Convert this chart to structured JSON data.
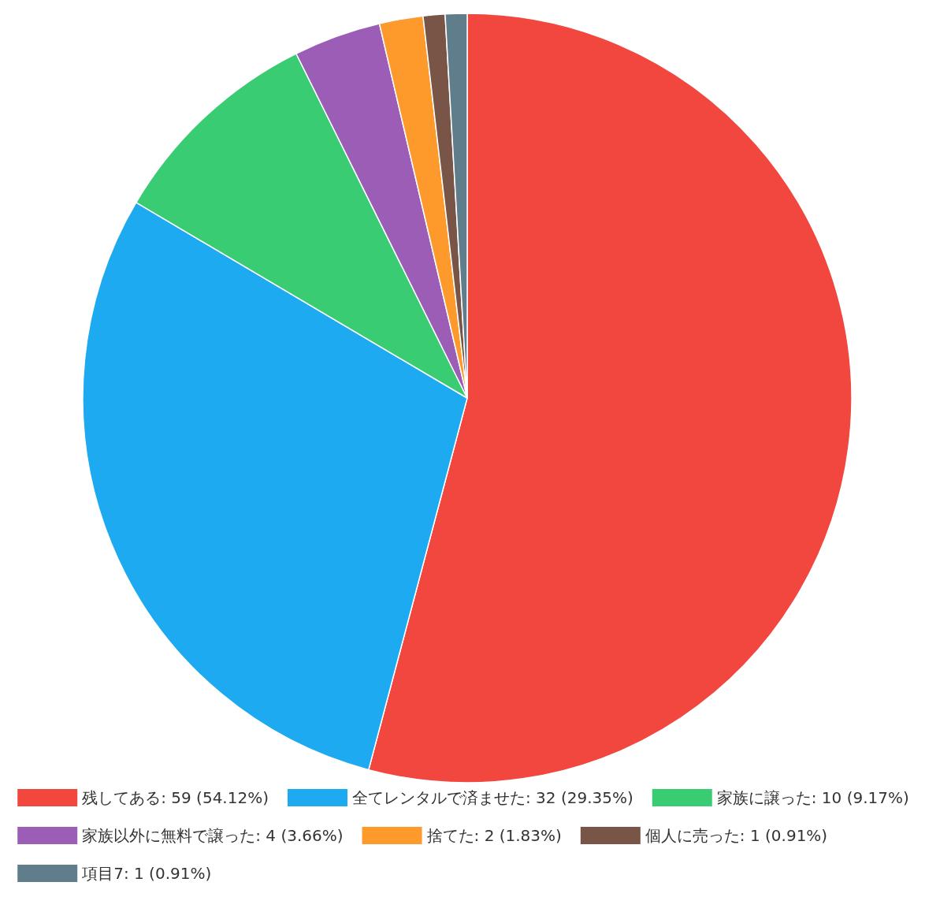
{
  "chart_data": {
    "type": "pie",
    "categories": [
      "残してある",
      "全てレンタルで済ませた",
      "家族に譲った",
      "家族以外に無料で譲った",
      "捨てた",
      "個人に売った",
      "項目7"
    ],
    "values": [
      59,
      32,
      10,
      4,
      2,
      1,
      1
    ],
    "value_labels": [
      "59 (54.12%)",
      "32 (29.35%)",
      "10 (9.17%)",
      "4 (3.66%)",
      "2 (1.83%)",
      "1 (0.91%)",
      "1 (0.91%)"
    ],
    "colors": [
      "#f1473f",
      "#1eaaf1",
      "#3acc72",
      "#9b5db5",
      "#fd9a2b",
      "#795548",
      "#607d8b"
    ],
    "legend": "bottom"
  }
}
